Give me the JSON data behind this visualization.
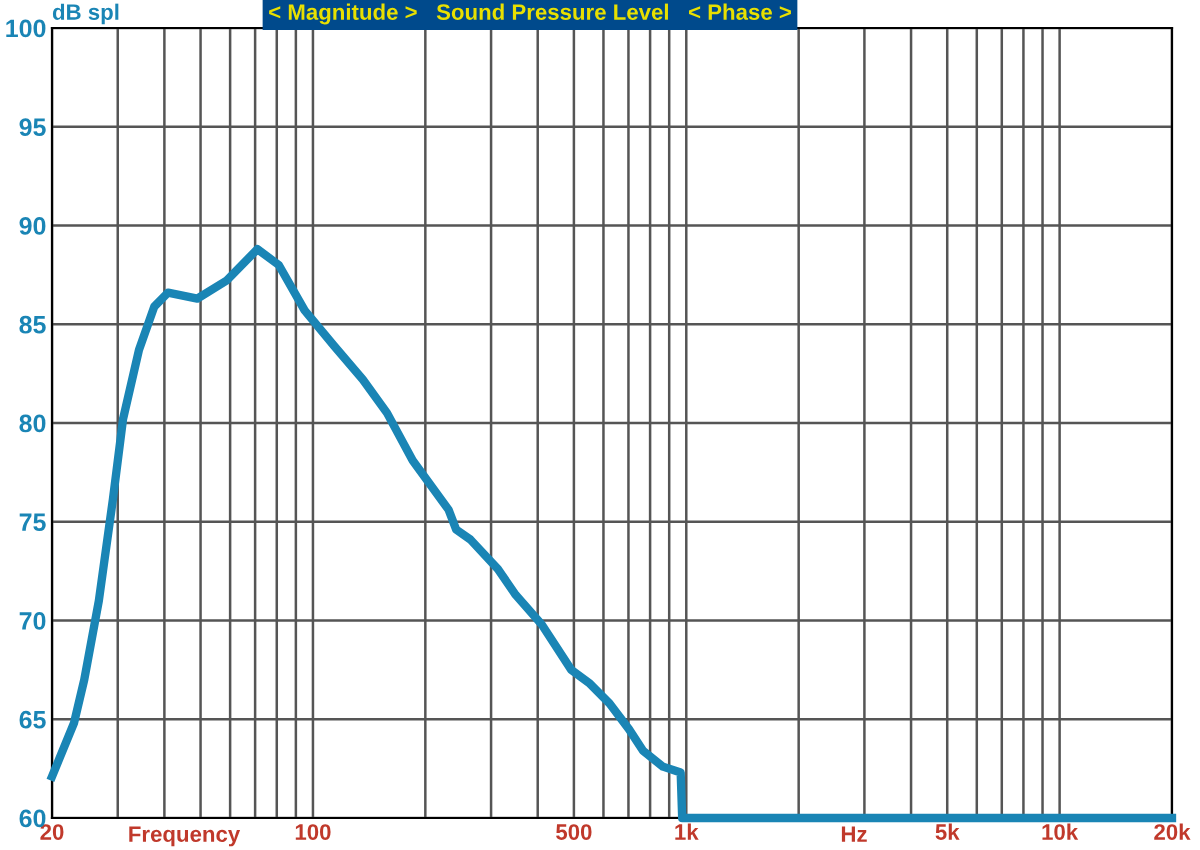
{
  "chart_data": {
    "type": "line",
    "title": "< Magnitude >   Sound Pressure Level   < Phase >",
    "ylabel": "dB spl",
    "xlabel": "Frequency",
    "annotations": [
      "Hz"
    ],
    "x": [
      20,
      22.9,
      24.4,
      26.7,
      29.1,
      31,
      34.2,
      37.6,
      40.9,
      49,
      58.6,
      71,
      81,
      95,
      114,
      136,
      158,
      185,
      231,
      242,
      264,
      313,
      349,
      410,
      492,
      552,
      623,
      702,
      766,
      866,
      966,
      975,
      20000
    ],
    "series": [
      {
        "color": "#1a85b5",
        "values": [
          62.1,
          64.8,
          67.0,
          71.0,
          76.1,
          80.2,
          83.7,
          85.9,
          86.6,
          86.3,
          87.2,
          88.8,
          88.0,
          85.7,
          83.9,
          82.2,
          80.5,
          78.1,
          75.6,
          74.6,
          74.1,
          72.6,
          71.3,
          69.8,
          67.5,
          66.8,
          65.8,
          64.5,
          63.4,
          62.6,
          62.3,
          60,
          60
        ]
      }
    ],
    "log": "x",
    "xlim": [
      20,
      20000
    ],
    "ylim": [
      60,
      100
    ],
    "xticks": [
      20,
      100,
      500,
      {
        "value": 1000,
        "label": "1k"
      },
      {
        "value": 5000,
        "label": "5k"
      },
      {
        "value": 10000,
        "label": "10k"
      },
      {
        "value": 20000,
        "label": "20k"
      }
    ],
    "yticks": [
      60,
      65,
      70,
      75,
      80,
      85,
      90,
      95,
      100
    ],
    "grid": true,
    "legend": false,
    "marker": "none",
    "line_style": "solid"
  }
}
